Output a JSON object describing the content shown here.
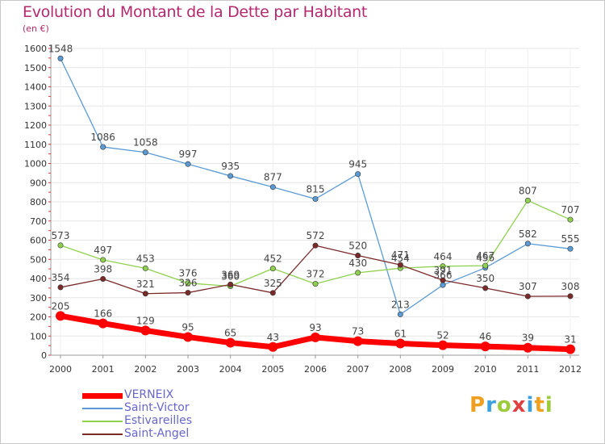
{
  "title": "Evolution du Montant de la Dette par Habitant",
  "unit_label": "(en €)",
  "logo": {
    "letters": [
      "P",
      "r",
      "o",
      "x",
      "i",
      "t",
      "i"
    ],
    "colors": [
      "#f0a020",
      "#3aa0e0",
      "#9ccc3c",
      "#e04040",
      "#3aa0e0",
      "#f0a020",
      "#9ccc3c"
    ]
  },
  "chart_data": {
    "type": "line",
    "title": "Evolution du Montant de la Dette par Habitant",
    "ylabel": "(en €)",
    "xlabel": "",
    "ylim": [
      0,
      1600
    ],
    "yticks": [
      0,
      100,
      200,
      300,
      400,
      500,
      600,
      700,
      800,
      900,
      1000,
      1100,
      1200,
      1300,
      1400,
      1500,
      1600
    ],
    "categories": [
      "2000",
      "2001",
      "2002",
      "2003",
      "2004",
      "2005",
      "2006",
      "2007",
      "2008",
      "2009",
      "2010",
      "2011",
      "2012"
    ],
    "grid": true,
    "legend_position": "bottom-left",
    "series": [
      {
        "name": "Saint-Victor",
        "color": "#5b9bd5",
        "width": 1.3,
        "values": [
          1548,
          1086,
          1058,
          997,
          935,
          877,
          815,
          945,
          213,
          366,
          456,
          582,
          555
        ]
      },
      {
        "name": "Estivareilles",
        "color": "#8fd14f",
        "width": 1.3,
        "values": [
          573,
          497,
          453,
          376,
          360,
          452,
          372,
          430,
          454,
          464,
          467,
          807,
          707
        ]
      },
      {
        "name": "Saint-Angel",
        "color": "#7b2a2a",
        "width": 1.3,
        "values": [
          354,
          398,
          321,
          326,
          369,
          325,
          572,
          520,
          471,
          391,
          350,
          307,
          308
        ]
      },
      {
        "name": "VERNEIX",
        "color": "#ff0000",
        "width": 7,
        "values": [
          205,
          166,
          129,
          95,
          65,
          43,
          93,
          73,
          61,
          52,
          46,
          39,
          31
        ]
      }
    ],
    "legend_order": [
      "VERNEIX",
      "Saint-Victor",
      "Estivareilles",
      "Saint-Angel"
    ]
  }
}
